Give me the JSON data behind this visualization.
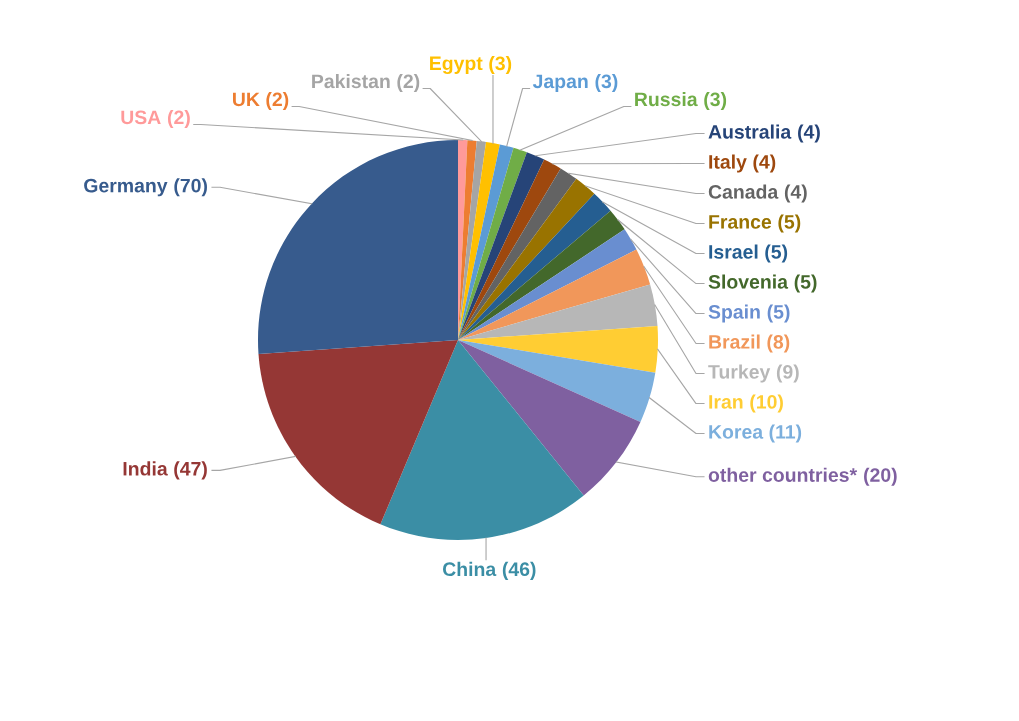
{
  "chart_data": {
    "type": "pie",
    "categories": [
      "USA",
      "UK",
      "Pakistan",
      "Egypt",
      "Japan",
      "Russia",
      "Australia",
      "Italy",
      "Canada",
      "France",
      "Israel",
      "Slovenia",
      "Spain",
      "Brazil",
      "Turkey",
      "Iran",
      "Korea",
      "other countries*",
      "China",
      "India",
      "Germany"
    ],
    "values": [
      2,
      2,
      2,
      3,
      3,
      3,
      4,
      4,
      4,
      5,
      5,
      5,
      5,
      8,
      9,
      10,
      11,
      20,
      46,
      47,
      70
    ],
    "value_labels": [
      "(2)",
      "(2)",
      "(2)",
      "(3)",
      "(3)",
      "(3)",
      "(4)",
      "(4)",
      "(4)",
      "(5)",
      "(5)",
      "(5)",
      "(5)",
      "(8)",
      "(9)",
      "(10)",
      "(11)",
      "(20)",
      "(46)",
      "(47)",
      "(70)"
    ],
    "colors": [
      "#ff9a9a",
      "#ed7d31",
      "#a5a5a5",
      "#ffc000",
      "#5b9bd5",
      "#70ad47",
      "#264478",
      "#9e480e",
      "#636363",
      "#997300",
      "#255e91",
      "#43682b",
      "#698ed0",
      "#f1975a",
      "#b7b7b7",
      "#ffcd33",
      "#7cafdd",
      "#7f60a0",
      "#3b8ea5",
      "#953735",
      "#375b8d"
    ]
  }
}
